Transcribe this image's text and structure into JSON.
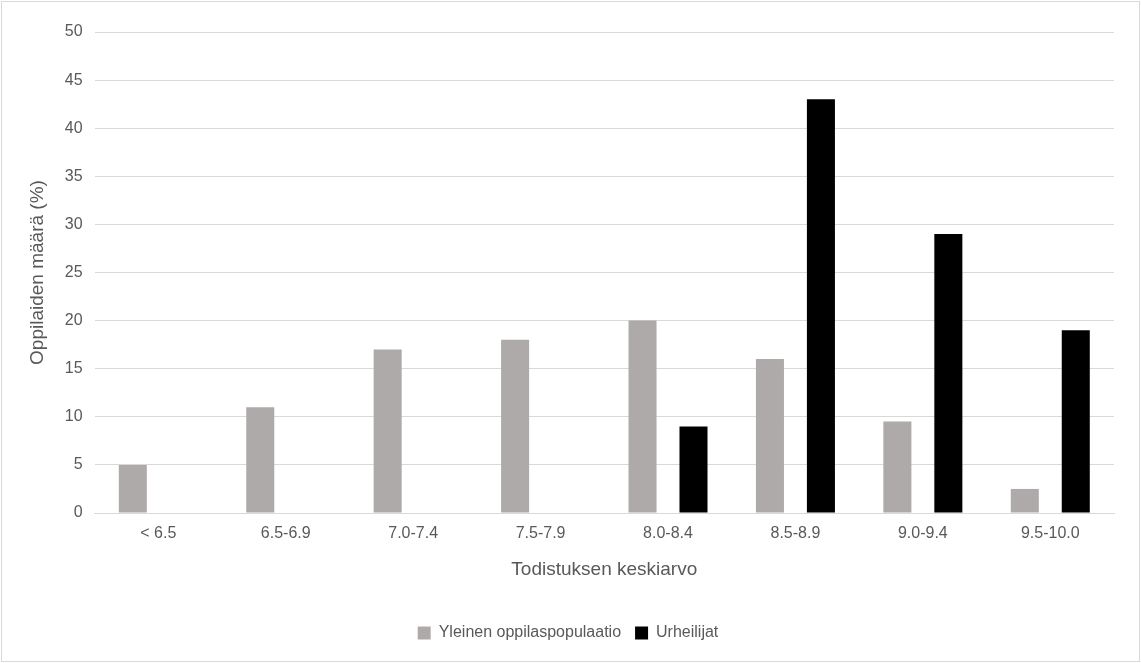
{
  "chart_data": {
    "type": "bar",
    "xlabel": "Todistuksen keskiarvo",
    "ylabel": "Oppilaiden määrä (%)",
    "categories": [
      "< 6.5",
      "6.5-6.9",
      "7.0-7.4",
      "7.5-7.9",
      "8.0-8.4",
      "8.5-8.9",
      "9.0-9.4",
      "9.5-10.0"
    ],
    "series": [
      {
        "name": "Yleinen oppilaspopulaatio",
        "color": "#aeaaaa",
        "values": [
          5,
          11,
          17,
          18,
          20,
          16,
          9.5,
          2.5
        ]
      },
      {
        "name": "Urheilijat",
        "color": "#000000",
        "values": [
          null,
          null,
          null,
          null,
          9,
          43,
          29,
          19
        ]
      }
    ],
    "ylim": [
      0,
      50
    ],
    "yticks": [
      0,
      5,
      10,
      15,
      20,
      25,
      30,
      35,
      40,
      45,
      50
    ],
    "grid": "y",
    "legend": "bottom"
  }
}
